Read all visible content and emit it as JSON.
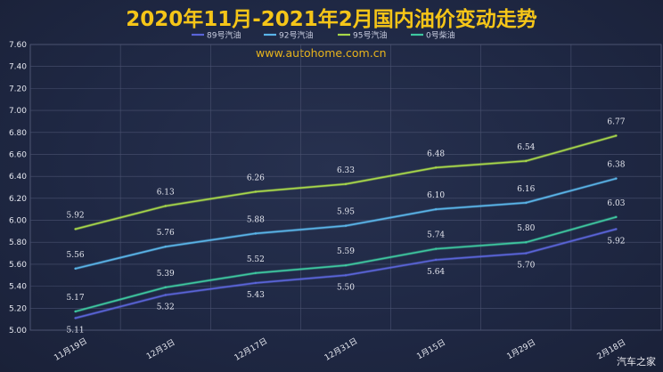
{
  "page": {
    "watermark": "www.autohome.com.cn",
    "brand": "汽车之家"
  },
  "chart_data": {
    "type": "line",
    "title": "2020年11月-2021年2月国内油价变动走势",
    "xlabel": "",
    "ylabel": "",
    "categories": [
      "11月19日",
      "12月3日",
      "12月17日",
      "12月31日",
      "1月15日",
      "1月29日",
      "2月18日"
    ],
    "ylim": [
      5.0,
      7.6
    ],
    "yticks": [
      "5.00",
      "5.20",
      "5.40",
      "5.60",
      "5.80",
      "6.00",
      "6.20",
      "6.40",
      "6.60",
      "6.80",
      "7.00",
      "7.20",
      "7.40",
      "7.60"
    ],
    "grid": true,
    "legend_position": "top",
    "series": [
      {
        "name": "89号汽油",
        "color": "#5a64d8",
        "label_side": "below",
        "values": [
          5.11,
          5.32,
          5.43,
          5.5,
          5.64,
          5.7,
          5.92
        ]
      },
      {
        "name": "92号汽油",
        "color": "#5ab4e8",
        "label_side": "above",
        "values": [
          5.56,
          5.76,
          5.88,
          5.95,
          6.1,
          6.16,
          6.38
        ]
      },
      {
        "name": "95号汽油",
        "color": "#a8d84a",
        "label_side": "above",
        "values": [
          5.92,
          6.13,
          6.26,
          6.33,
          6.48,
          6.54,
          6.77
        ]
      },
      {
        "name": "0号柴油",
        "color": "#3ec8a0",
        "label_side": "above",
        "values": [
          5.17,
          5.39,
          5.52,
          5.59,
          5.74,
          5.8,
          6.03
        ]
      }
    ]
  }
}
